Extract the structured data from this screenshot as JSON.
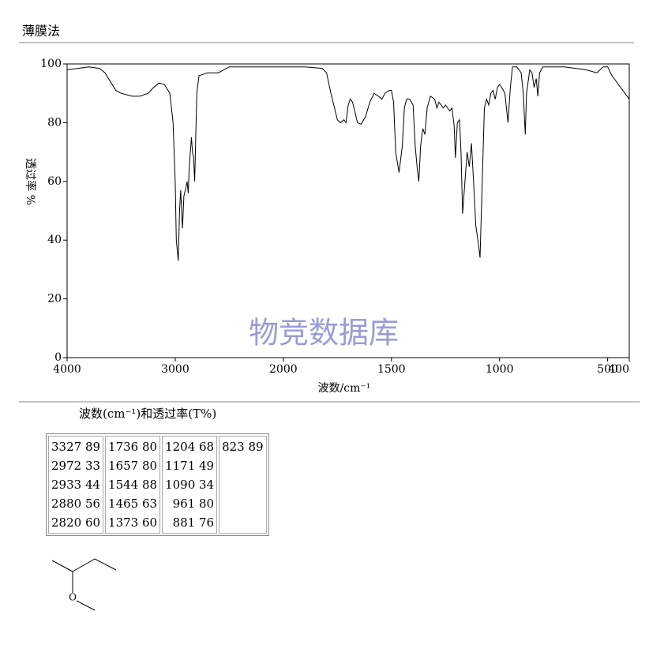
{
  "header": {
    "title": "薄膜法"
  },
  "chart_data": {
    "type": "line",
    "ylabel": "透过率 %",
    "xlabel": "波数/cm⁻¹",
    "watermark": "物竞数据库",
    "xlim": [
      4000,
      400
    ],
    "x_scale_break": 2000,
    "ylim": [
      0,
      100
    ],
    "xticks": [
      4000,
      3000,
      2000,
      1500,
      1000,
      500,
      400
    ],
    "yticks": [
      0,
      20,
      40,
      60,
      80,
      100
    ],
    "series": [
      {
        "color": "#000000",
        "x": [
          4000,
          3900,
          3800,
          3700,
          3650,
          3600,
          3550,
          3500,
          3400,
          3327,
          3250,
          3200,
          3150,
          3100,
          3050,
          3020,
          3000,
          2990,
          2972,
          2960,
          2950,
          2940,
          2933,
          2920,
          2900,
          2890,
          2880,
          2870,
          2850,
          2840,
          2830,
          2820,
          2810,
          2800,
          2780,
          2700,
          2600,
          2550,
          2500,
          2400,
          2300,
          2200,
          2100,
          2000,
          1900,
          1820,
          1800,
          1780,
          1760,
          1750,
          1736,
          1720,
          1710,
          1700,
          1690,
          1680,
          1670,
          1657,
          1640,
          1620,
          1600,
          1580,
          1560,
          1544,
          1530,
          1510,
          1500,
          1490,
          1480,
          1465,
          1450,
          1440,
          1430,
          1415,
          1400,
          1390,
          1380,
          1373,
          1365,
          1355,
          1345,
          1335,
          1320,
          1300,
          1290,
          1280,
          1260,
          1250,
          1230,
          1220,
          1210,
          1204,
          1195,
          1185,
          1178,
          1171,
          1160,
          1150,
          1140,
          1130,
          1120,
          1110,
          1100,
          1090,
          1080,
          1070,
          1060,
          1050,
          1040,
          1030,
          1020,
          1010,
          1000,
          990,
          975,
          961,
          950,
          940,
          920,
          900,
          890,
          881,
          875,
          860,
          850,
          840,
          830,
          823,
          815,
          800,
          700,
          600,
          550,
          520,
          500,
          480,
          460,
          440,
          420,
          400
        ],
        "values": [
          98,
          98.5,
          99,
          98.5,
          97,
          94,
          91,
          90,
          89,
          89,
          90,
          92,
          93.5,
          93,
          90,
          80,
          60,
          40,
          33,
          50,
          57,
          50,
          44,
          55,
          58,
          60,
          56,
          65,
          75,
          70,
          68,
          60,
          75,
          90,
          96,
          97,
          97,
          98,
          99,
          99,
          99,
          99,
          99,
          99,
          99,
          98.5,
          97,
          90,
          84,
          81,
          80,
          81,
          80,
          86,
          88,
          87,
          84,
          80,
          79.5,
          82,
          87,
          90,
          89,
          88,
          90,
          91,
          91,
          87,
          70,
          63,
          72,
          85,
          88,
          88,
          86,
          72,
          64,
          60,
          72,
          78,
          76,
          85,
          89,
          88,
          85,
          87,
          85,
          86,
          84,
          85,
          79,
          68,
          80,
          81,
          70,
          49,
          60,
          70,
          65,
          73,
          60,
          45,
          40,
          34,
          60,
          85,
          88,
          86,
          90,
          91,
          88,
          92,
          93,
          92,
          90,
          80,
          92,
          99,
          99,
          97,
          90,
          76,
          90,
          98,
          97,
          92,
          95,
          89,
          97,
          99,
          99,
          98,
          97,
          99,
          99,
          96,
          94,
          92,
          90,
          88
        ]
      }
    ]
  },
  "table": {
    "caption": "波数(cm⁻¹)和透过率(T%)",
    "columns": [
      [
        "3327 89",
        "2972 33",
        "2933 44",
        "2880 56",
        "2820 60"
      ],
      [
        "1736 80",
        "1657 80",
        "1544 88",
        "1465 63",
        "1373 60"
      ],
      [
        "1204 68",
        "1171 49",
        "1090 34",
        "961 80",
        "881 76"
      ],
      [
        "823 89"
      ]
    ]
  },
  "structure": {
    "atom_label": "O"
  }
}
